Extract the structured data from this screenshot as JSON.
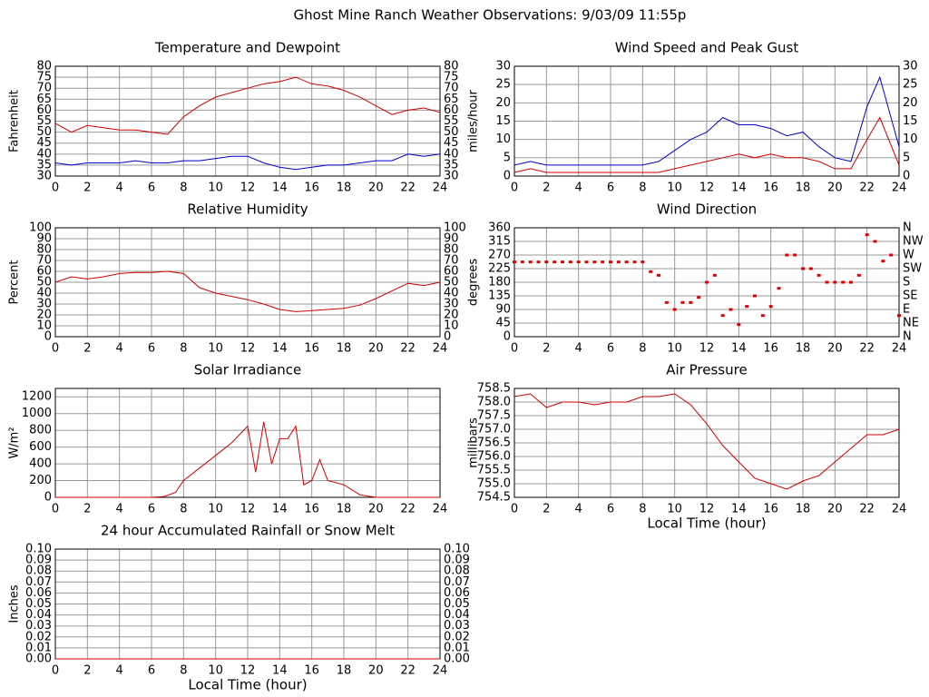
{
  "title": "Ghost Mine Ranch Weather Observations: 9/03/09 11:55p",
  "chart_data": [
    {
      "type": "line",
      "title": "Temperature and Dewpoint",
      "ylabel": "Fahrenheit",
      "x": [
        0,
        1,
        2,
        3,
        4,
        5,
        6,
        7,
        8,
        9,
        10,
        11,
        12,
        13,
        14,
        15,
        16,
        17,
        18,
        19,
        20,
        21,
        22,
        23,
        24
      ],
      "series": [
        {
          "name": "Temperature",
          "color": "#d00000",
          "values": [
            54,
            50,
            53,
            52,
            51,
            51,
            50,
            49,
            57,
            62,
            66,
            68,
            70,
            72,
            73,
            75,
            72,
            71,
            69,
            66,
            62,
            58,
            60,
            61,
            59
          ]
        },
        {
          "name": "Dewpoint",
          "color": "#0000c8",
          "values": [
            36,
            35,
            36,
            36,
            36,
            37,
            36,
            36,
            37,
            37,
            38,
            39,
            39,
            36,
            34,
            33,
            34,
            35,
            35,
            36,
            37,
            37,
            40,
            39,
            40
          ]
        }
      ],
      "xlim": [
        0,
        24
      ],
      "xticks": [
        0,
        2,
        4,
        6,
        8,
        10,
        12,
        14,
        16,
        18,
        20,
        22,
        24
      ],
      "ylim": [
        30,
        80
      ],
      "yticks": [
        30,
        35,
        40,
        45,
        50,
        55,
        60,
        65,
        70,
        75,
        80
      ],
      "y2lim": [
        30,
        80
      ],
      "y2ticks": [
        30,
        35,
        40,
        45,
        50,
        55,
        60,
        65,
        70,
        75,
        80
      ],
      "grid": true
    },
    {
      "type": "line",
      "title": "Wind Speed and Peak Gust",
      "ylabel": "miles/hour",
      "x": [
        0,
        1,
        2,
        3,
        4,
        5,
        6,
        7,
        8,
        9,
        10,
        11,
        12,
        13,
        14,
        15,
        16,
        17,
        18,
        19,
        20,
        21,
        22,
        22.8,
        24
      ],
      "series": [
        {
          "name": "Peak Gust",
          "color": "#0000c8",
          "values": [
            3,
            4,
            3,
            3,
            3,
            3,
            3,
            3,
            3,
            4,
            7,
            10,
            12,
            16,
            14,
            14,
            13,
            11,
            12,
            8,
            5,
            4,
            19,
            27,
            8
          ]
        },
        {
          "name": "Wind Speed",
          "color": "#d00000",
          "values": [
            1,
            2,
            1,
            1,
            1,
            1,
            1,
            1,
            1,
            1,
            2,
            3,
            4,
            5,
            6,
            5,
            6,
            5,
            5,
            4,
            2,
            2,
            10,
            16,
            3
          ]
        }
      ],
      "xlim": [
        0,
        24
      ],
      "xticks": [
        0,
        2,
        4,
        6,
        8,
        10,
        12,
        14,
        16,
        18,
        20,
        22,
        24
      ],
      "ylim": [
        0,
        30
      ],
      "yticks": [
        0,
        5,
        10,
        15,
        20,
        25,
        30
      ],
      "y2lim": [
        0,
        30
      ],
      "y2ticks": [
        0,
        5,
        10,
        15,
        20,
        25,
        30
      ],
      "grid": true
    },
    {
      "type": "line",
      "title": "Relative Humidity",
      "ylabel": "Percent",
      "x": [
        0,
        1,
        2,
        3,
        4,
        5,
        6,
        7,
        8,
        9,
        10,
        11,
        12,
        13,
        14,
        15,
        16,
        17,
        18,
        19,
        20,
        21,
        22,
        23,
        24
      ],
      "series": [
        {
          "name": "Relative Humidity",
          "color": "#d00000",
          "values": [
            50,
            55,
            53,
            55,
            58,
            59,
            59,
            60,
            58,
            45,
            40,
            37,
            34,
            30,
            25,
            23,
            24,
            25,
            26,
            29,
            35,
            42,
            49,
            47,
            50
          ]
        }
      ],
      "xlim": [
        0,
        24
      ],
      "xticks": [
        0,
        2,
        4,
        6,
        8,
        10,
        12,
        14,
        16,
        18,
        20,
        22,
        24
      ],
      "ylim": [
        0,
        100
      ],
      "yticks": [
        0,
        10,
        20,
        30,
        40,
        50,
        60,
        70,
        80,
        90,
        100
      ],
      "y2lim": [
        0,
        100
      ],
      "y2ticks": [
        0,
        10,
        20,
        30,
        40,
        50,
        60,
        70,
        80,
        90,
        100
      ],
      "grid": true
    },
    {
      "type": "scatter",
      "title": "Wind Direction",
      "ylabel": "degrees",
      "x": [
        0,
        0.5,
        1,
        1.5,
        2,
        2.5,
        3,
        3.5,
        4,
        4.5,
        5,
        5.5,
        6,
        6.5,
        7,
        7.5,
        8,
        8.5,
        9,
        9.5,
        10,
        10.5,
        11,
        11.5,
        12,
        12.5,
        13,
        13.5,
        14,
        14.5,
        15,
        15.5,
        16,
        16.5,
        17,
        17.5,
        18,
        18.5,
        19,
        19.5,
        20,
        20.5,
        21,
        21.5,
        22,
        22.5,
        23,
        23.5,
        24
      ],
      "series": [
        {
          "name": "Wind Direction",
          "color": "#e00000",
          "values": [
            247,
            247,
            247,
            247,
            247,
            247,
            247,
            247,
            247,
            247,
            247,
            247,
            247,
            247,
            247,
            247,
            247,
            215,
            203,
            113,
            90,
            113,
            113,
            130,
            180,
            203,
            70,
            90,
            40,
            100,
            135,
            70,
            100,
            160,
            270,
            270,
            225,
            225,
            203,
            180,
            180,
            180,
            180,
            203,
            337,
            315,
            250,
            270,
            70
          ]
        }
      ],
      "xlim": [
        0,
        24
      ],
      "xticks": [
        0,
        2,
        4,
        6,
        8,
        10,
        12,
        14,
        16,
        18,
        20,
        22,
        24
      ],
      "ylim": [
        0,
        360
      ],
      "yticks": [
        0,
        45,
        90,
        135,
        180,
        225,
        270,
        315,
        360
      ],
      "y2lim": [
        0,
        360
      ],
      "y2ticks": [
        {
          "value": 0,
          "label": "N"
        },
        {
          "value": 45,
          "label": "NE"
        },
        {
          "value": 90,
          "label": "E"
        },
        {
          "value": 135,
          "label": "SE"
        },
        {
          "value": 180,
          "label": "S"
        },
        {
          "value": 225,
          "label": "SW"
        },
        {
          "value": 270,
          "label": "W"
        },
        {
          "value": 315,
          "label": "NW"
        },
        {
          "value": 360,
          "label": "N"
        }
      ],
      "grid": true
    },
    {
      "type": "line",
      "title": "Solar Irradiance",
      "ylabel": "W/m²",
      "x": [
        0,
        2,
        4,
        6,
        6.8,
        7.5,
        8,
        9,
        10,
        11,
        12,
        12.5,
        13,
        13.5,
        14,
        14.5,
        15,
        15.5,
        16,
        16.5,
        17,
        18,
        19,
        20,
        22,
        24
      ],
      "series": [
        {
          "name": "Solar Irradiance",
          "color": "#d00000",
          "values": [
            0,
            0,
            0,
            0,
            10,
            60,
            200,
            350,
            500,
            650,
            850,
            300,
            900,
            400,
            700,
            700,
            850,
            150,
            200,
            450,
            200,
            150,
            30,
            0,
            0,
            0
          ]
        }
      ],
      "xlim": [
        0,
        24
      ],
      "xticks": [
        0,
        2,
        4,
        6,
        8,
        10,
        12,
        14,
        16,
        18,
        20,
        22,
        24
      ],
      "ylim": [
        0,
        1300
      ],
      "yticks": [
        0,
        200,
        400,
        600,
        800,
        1000,
        1200
      ],
      "grid": true
    },
    {
      "type": "line",
      "title": "Air Pressure",
      "ylabel": "millibars",
      "xlabel": "Local Time (hour)",
      "x": [
        0,
        1,
        2,
        3,
        4,
        5,
        6,
        7,
        8,
        9,
        10,
        11,
        12,
        13,
        14,
        15,
        16,
        17,
        18,
        19,
        20,
        21,
        22,
        23,
        24
      ],
      "series": [
        {
          "name": "Air Pressure",
          "color": "#d00000",
          "values": [
            758.2,
            758.3,
            757.8,
            758,
            758,
            757.9,
            758,
            758,
            758.2,
            758.2,
            758.3,
            757.9,
            757.2,
            756.4,
            755.8,
            755.2,
            755,
            754.8,
            755.1,
            755.3,
            755.8,
            756.3,
            756.8,
            756.8,
            757
          ]
        }
      ],
      "xlim": [
        0,
        24
      ],
      "xticks": [
        0,
        2,
        4,
        6,
        8,
        10,
        12,
        14,
        16,
        18,
        20,
        22,
        24
      ],
      "ylim": [
        754.5,
        758.5
      ],
      "yticks": [
        754.5,
        {
          "value": 755,
          "label": "755.0"
        },
        755.5,
        {
          "value": 756,
          "label": "756.0"
        },
        756.5,
        {
          "value": 757,
          "label": "757.0"
        },
        757.5,
        {
          "value": 758,
          "label": "758.0"
        },
        758.5
      ],
      "grid": true
    },
    {
      "type": "line",
      "title": "24 hour Accumulated Rainfall or Snow Melt",
      "ylabel": "Inches",
      "xlabel": "Local Time (hour)",
      "x": [
        0,
        24
      ],
      "series": [
        {
          "name": "Rainfall",
          "color": "#d00000",
          "values": [
            0,
            0
          ]
        }
      ],
      "xlim": [
        0,
        24
      ],
      "xticks": [
        0,
        2,
        4,
        6,
        8,
        10,
        12,
        14,
        16,
        18,
        20,
        22,
        24
      ],
      "ylim": [
        0,
        0.1
      ],
      "yticks": [
        {
          "value": 0,
          "label": "0.00"
        },
        0.01,
        0.02,
        0.03,
        0.04,
        0.05,
        0.06,
        0.07,
        0.08,
        0.09,
        {
          "value": 0.1,
          "label": "0.10"
        }
      ],
      "y2lim": [
        0,
        0.1
      ],
      "y2ticks": [
        {
          "value": 0,
          "label": "0.00"
        },
        0.01,
        0.02,
        0.03,
        0.04,
        0.05,
        0.06,
        0.07,
        0.08,
        0.09,
        {
          "value": 0.1,
          "label": "0.10"
        }
      ],
      "grid": true
    }
  ]
}
